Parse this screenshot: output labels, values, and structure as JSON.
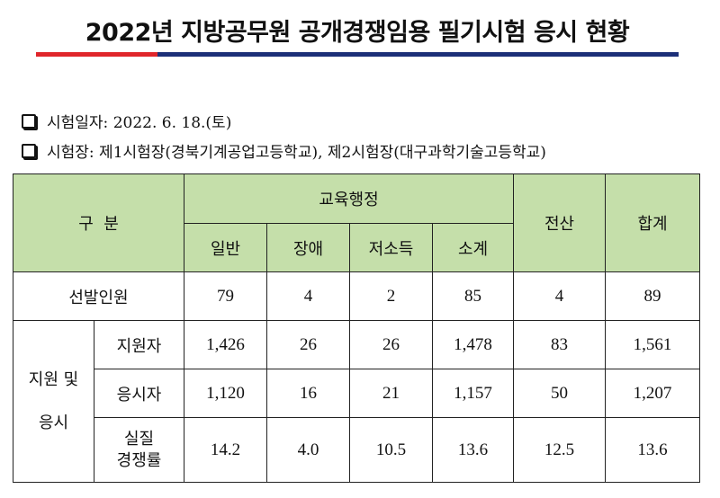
{
  "title": "2022년 지방공무원 공개경쟁임용 필기시험 응시 현황",
  "info": {
    "date_label": "시험일자: 2022. 6. 18.(토)",
    "venue_label": "시험장: 제1시험장(경북기계공업고등학교), 제2시험장(대구과학기술고등학교)"
  },
  "table": {
    "headers": {
      "category": "구  분",
      "group": "교육행정",
      "sub": [
        "일반",
        "장애",
        "저소득",
        "소계"
      ],
      "computing": "전산",
      "total": "합계"
    },
    "rows": {
      "selected": {
        "label": "선발인원",
        "values": [
          "79",
          "4",
          "2",
          "85",
          "4",
          "89"
        ]
      },
      "group_label": "지원 및\n\n응시",
      "applicants": {
        "label": "지원자",
        "values": [
          "1,426",
          "26",
          "26",
          "1,478",
          "83",
          "1,561"
        ]
      },
      "examinees": {
        "label": "응시자",
        "values": [
          "1,120",
          "16",
          "21",
          "1,157",
          "50",
          "1,207"
        ]
      },
      "ratio": {
        "label": "실질\n경쟁률",
        "values": [
          "14.2",
          "4.0",
          "10.5",
          "13.6",
          "12.5",
          "13.6"
        ]
      }
    }
  }
}
